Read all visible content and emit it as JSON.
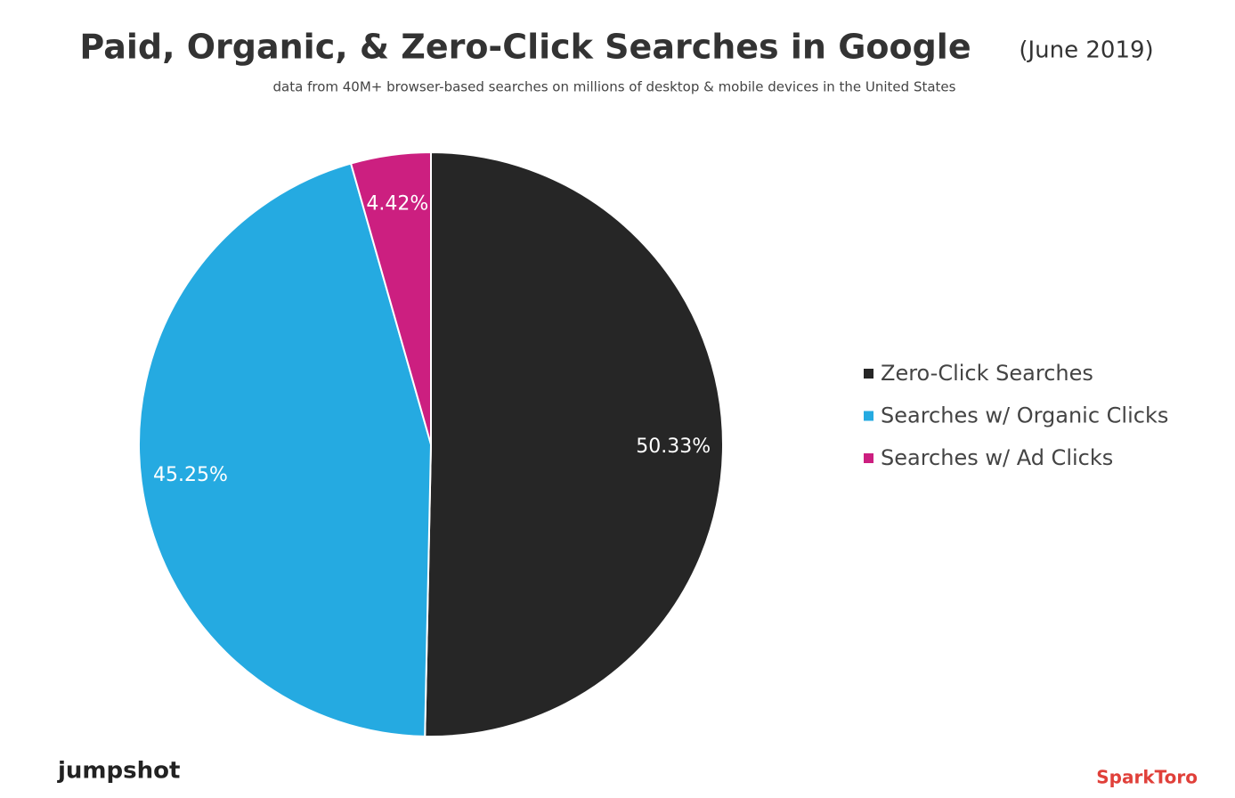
{
  "chart_data": {
    "type": "pie",
    "title": "Paid, Organic, & Zero-Click Searches in Google",
    "title_suffix": "(June 2019)",
    "subtitle": "data from 40M+ browser-based searches on millions of desktop & mobile devices in the United States",
    "categories": [
      "Zero-Click Searches",
      "Searches w/ Organic Clicks",
      "Searches w/ Ad Clicks"
    ],
    "values": [
      50.33,
      45.25,
      4.42
    ],
    "value_labels": [
      "50.33%",
      "45.25%",
      "4.42%"
    ],
    "colors": [
      "#262626",
      "#25aae1",
      "#cc1f80"
    ],
    "legend": "right",
    "footer_left": "jumpshot",
    "footer_right": "SparkToro"
  }
}
